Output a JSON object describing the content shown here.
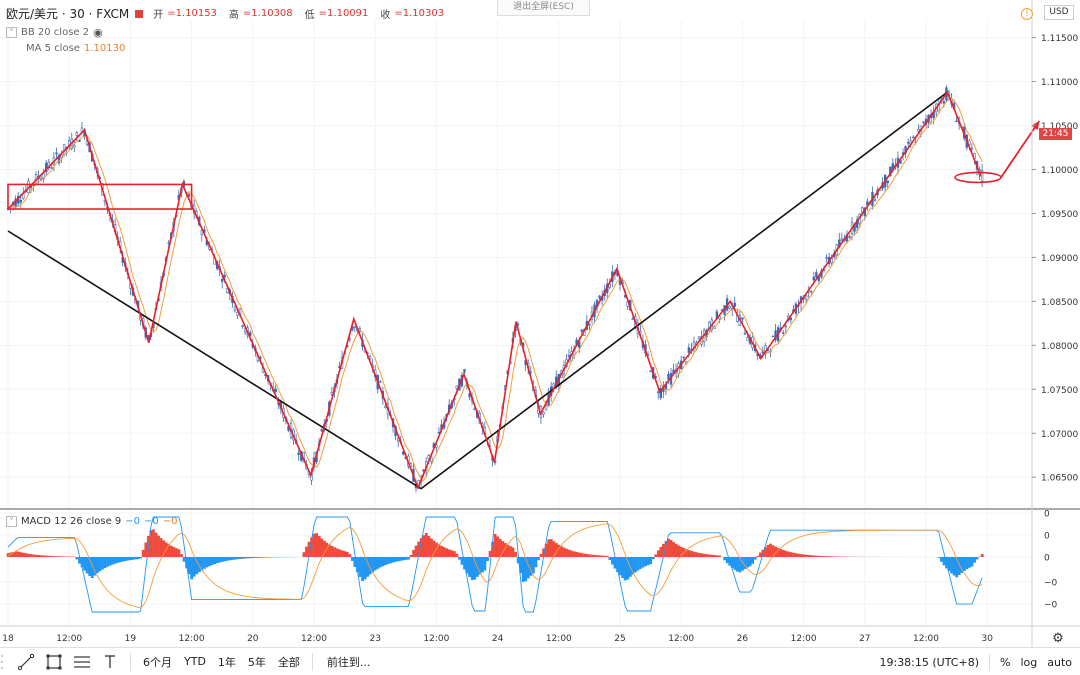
{
  "header": {
    "symbol": "欧元/美元 · 30 · FXCM",
    "open_label": "开",
    "open_value": "=1.10153",
    "high_label": "高",
    "high_value": "=1.10308",
    "low_label": "低",
    "low_value": "=1.10091",
    "close_label": "收",
    "close_value": "=1.10303",
    "fullscreen_exit": "退出全屏(ESC)",
    "currency_badge": "USD"
  },
  "indicators": {
    "bb_label": "BB 20 close 2",
    "ma_label": "MA 5 close",
    "ma_value": "1.10130",
    "macd_label": "MACD 12 26 close 9",
    "macd_values": [
      "−0",
      "−0",
      "−0"
    ]
  },
  "price_tag": "21:45",
  "toolbar": {
    "ranges": [
      "6个月",
      "YTD",
      "1年",
      "5年",
      "全部"
    ],
    "goto": "前往到...",
    "clock": "19:38:15 (UTC+8)",
    "percent": "%",
    "log": "log",
    "auto": "auto"
  },
  "chart_data": {
    "type": "line",
    "price_axis": [
      "1.11500",
      "1.11000",
      "1.10500",
      "1.10000",
      "1.09500",
      "1.09000",
      "1.08500",
      "1.08000",
      "1.07500",
      "1.07000",
      "1.06500"
    ],
    "price_range": [
      1.0615,
      1.117
    ],
    "time_axis": [
      "18",
      "12:00",
      "19",
      "12:00",
      "20",
      "12:00",
      "23",
      "12:00",
      "24",
      "12:00",
      "25",
      "12:00",
      "26",
      "12:00",
      "27",
      "12:00",
      "30"
    ],
    "macd_axis": [
      "0",
      "0",
      "0",
      "−0",
      "−0"
    ],
    "zigzag_red": [
      {
        "t": 0,
        "p": 1.0955
      },
      {
        "t": 1.25,
        "p": 1.1045
      },
      {
        "t": 2.3,
        "p": 1.0803
      },
      {
        "t": 2.85,
        "p": 1.0983
      },
      {
        "t": 4.95,
        "p": 1.0652
      },
      {
        "t": 5.65,
        "p": 1.083
      },
      {
        "t": 6.7,
        "p": 1.0638
      },
      {
        "t": 7.45,
        "p": 1.0767
      },
      {
        "t": 7.95,
        "p": 1.0667
      },
      {
        "t": 8.3,
        "p": 1.0827
      },
      {
        "t": 8.7,
        "p": 1.0722
      },
      {
        "t": 9.95,
        "p": 1.0887
      },
      {
        "t": 10.65,
        "p": 1.0747
      },
      {
        "t": 11.8,
        "p": 1.085
      },
      {
        "t": 12.3,
        "p": 1.0785
      },
      {
        "t": 15.35,
        "p": 1.1088
      },
      {
        "t": 15.9,
        "p": 1.0992
      }
    ],
    "trend_black": [
      {
        "t": 0,
        "p": 1.093
      },
      {
        "t": 6.75,
        "p": 1.0637
      },
      {
        "t": 15.35,
        "p": 1.1088
      }
    ],
    "box": {
      "t0": 0,
      "t1": 3.0,
      "p0": 1.0955,
      "p1": 1.0983
    },
    "forecast_arrow": [
      {
        "t": 16.3,
        "p": 1.0995
      },
      {
        "t": 16.85,
        "p": 1.1055
      }
    ],
    "ellipse": {
      "t": 15.85,
      "p": 1.0991
    }
  }
}
